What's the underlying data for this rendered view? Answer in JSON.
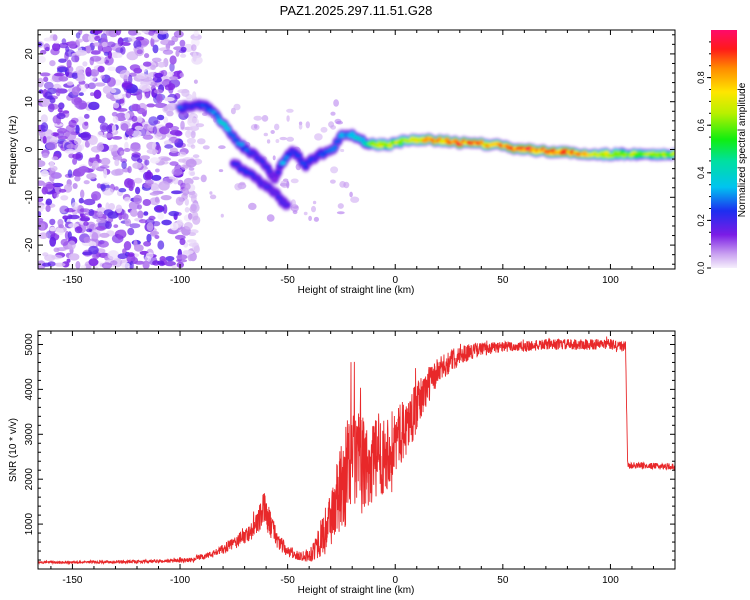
{
  "figure": {
    "title": "PAZ1.2025.297.11.51.G28"
  },
  "colors": {
    "snr_line": "#e8282a",
    "axis": "#000000",
    "frame": "#000000"
  },
  "chart_data": [
    {
      "type": "heatmap",
      "title": "PAZ1.2025.297.11.51.G28",
      "xlabel": "Height of straight line (km)",
      "ylabel": "Frequency (Hz)",
      "xlim": [
        -166,
        130
      ],
      "ylim": [
        -25,
        25
      ],
      "xticks": [
        -150,
        -100,
        -50,
        0,
        50,
        100
      ],
      "yticks": [
        -20,
        -10,
        0,
        10,
        20
      ],
      "colorbar": {
        "label": "Normalized spectral amplitude",
        "range": [
          0,
          1
        ],
        "ticks": [
          0,
          0.2,
          0.4,
          0.6,
          0.8
        ],
        "tick_labels": [
          "0.0",
          "0.2",
          "0.4",
          "0.6",
          "0.8"
        ],
        "colormap": "rainbow"
      },
      "ridge_track": {
        "x": [
          -100,
          -93,
          -88,
          -84,
          -80,
          -76,
          -72,
          -66,
          -60,
          -56,
          -52,
          -47,
          -42,
          -36,
          -30,
          -25,
          -20,
          -14,
          -8,
          -2,
          5,
          15,
          30,
          45,
          60,
          75,
          90,
          105,
          130
        ],
        "frequency": [
          8.5,
          9.5,
          9.0,
          7.5,
          5.5,
          3.0,
          1.0,
          -1.0,
          -3.5,
          -6.0,
          -2.5,
          0.0,
          -3.5,
          -1.0,
          -0.5,
          3.0,
          3.0,
          1.5,
          1.0,
          1.0,
          2.0,
          2.0,
          1.5,
          1.0,
          0.0,
          -0.5,
          -1.0,
          -1.0,
          -1.0
        ],
        "amplitude": [
          0.25,
          0.2,
          0.25,
          0.3,
          0.35,
          0.3,
          0.3,
          0.2,
          0.2,
          0.15,
          0.3,
          0.2,
          0.25,
          0.2,
          0.3,
          0.3,
          0.35,
          0.4,
          0.7,
          0.6,
          0.7,
          0.75,
          0.85,
          0.75,
          0.85,
          0.85,
          0.75,
          0.6,
          0.6
        ]
      },
      "secondary_track": {
        "x": [
          -75,
          -68,
          -62,
          -56,
          -50
        ],
        "frequency": [
          -3,
          -5,
          -7,
          -9,
          -12
        ],
        "amplitude": [
          0.2,
          0.22,
          0.2,
          0.18,
          0.2
        ]
      },
      "noise_region": {
        "x_range": [
          -166,
          -98
        ],
        "amplitude_max": 0.12
      }
    },
    {
      "type": "line",
      "title": "",
      "xlabel": "Height of straight line (km)",
      "ylabel": "SNR (10 * v/v)",
      "xlim": [
        -166,
        130
      ],
      "ylim": [
        0,
        5300
      ],
      "xticks": [
        -150,
        -100,
        -50,
        0,
        50,
        100
      ],
      "yticks": [
        1000,
        2000,
        3000,
        4000,
        5000
      ],
      "series": [
        {
          "name": "SNR",
          "x": [
            -166,
            -150,
            -130,
            -110,
            -95,
            -85,
            -80,
            -74,
            -68,
            -64,
            -61,
            -58,
            -54,
            -50,
            -46,
            -40,
            -36,
            -32,
            -28,
            -24,
            -20,
            -16,
            -12,
            -8,
            -4,
            0,
            4,
            8,
            12,
            16,
            20,
            26,
            32,
            40,
            50,
            60,
            70,
            80,
            90,
            100,
            107,
            108,
            115,
            130
          ],
          "y": [
            150,
            150,
            160,
            170,
            200,
            330,
            440,
            600,
            800,
            1000,
            1350,
            1000,
            600,
            380,
            300,
            300,
            560,
            900,
            1400,
            1900,
            2500,
            2300,
            2300,
            2450,
            2600,
            2850,
            3100,
            3400,
            3800,
            4150,
            4400,
            4650,
            4800,
            4900,
            4950,
            4950,
            5000,
            5000,
            5000,
            5000,
            4950,
            2300,
            2300,
            2280
          ],
          "jitter": [
            30,
            30,
            35,
            40,
            50,
            80,
            110,
            150,
            200,
            250,
            400,
            300,
            200,
            120,
            100,
            150,
            350,
            550,
            800,
            1100,
            1200,
            1100,
            1000,
            900,
            850,
            750,
            650,
            600,
            500,
            400,
            300,
            250,
            200,
            150,
            120,
            120,
            120,
            120,
            120,
            120,
            120,
            70,
            70,
            70
          ]
        }
      ]
    }
  ]
}
